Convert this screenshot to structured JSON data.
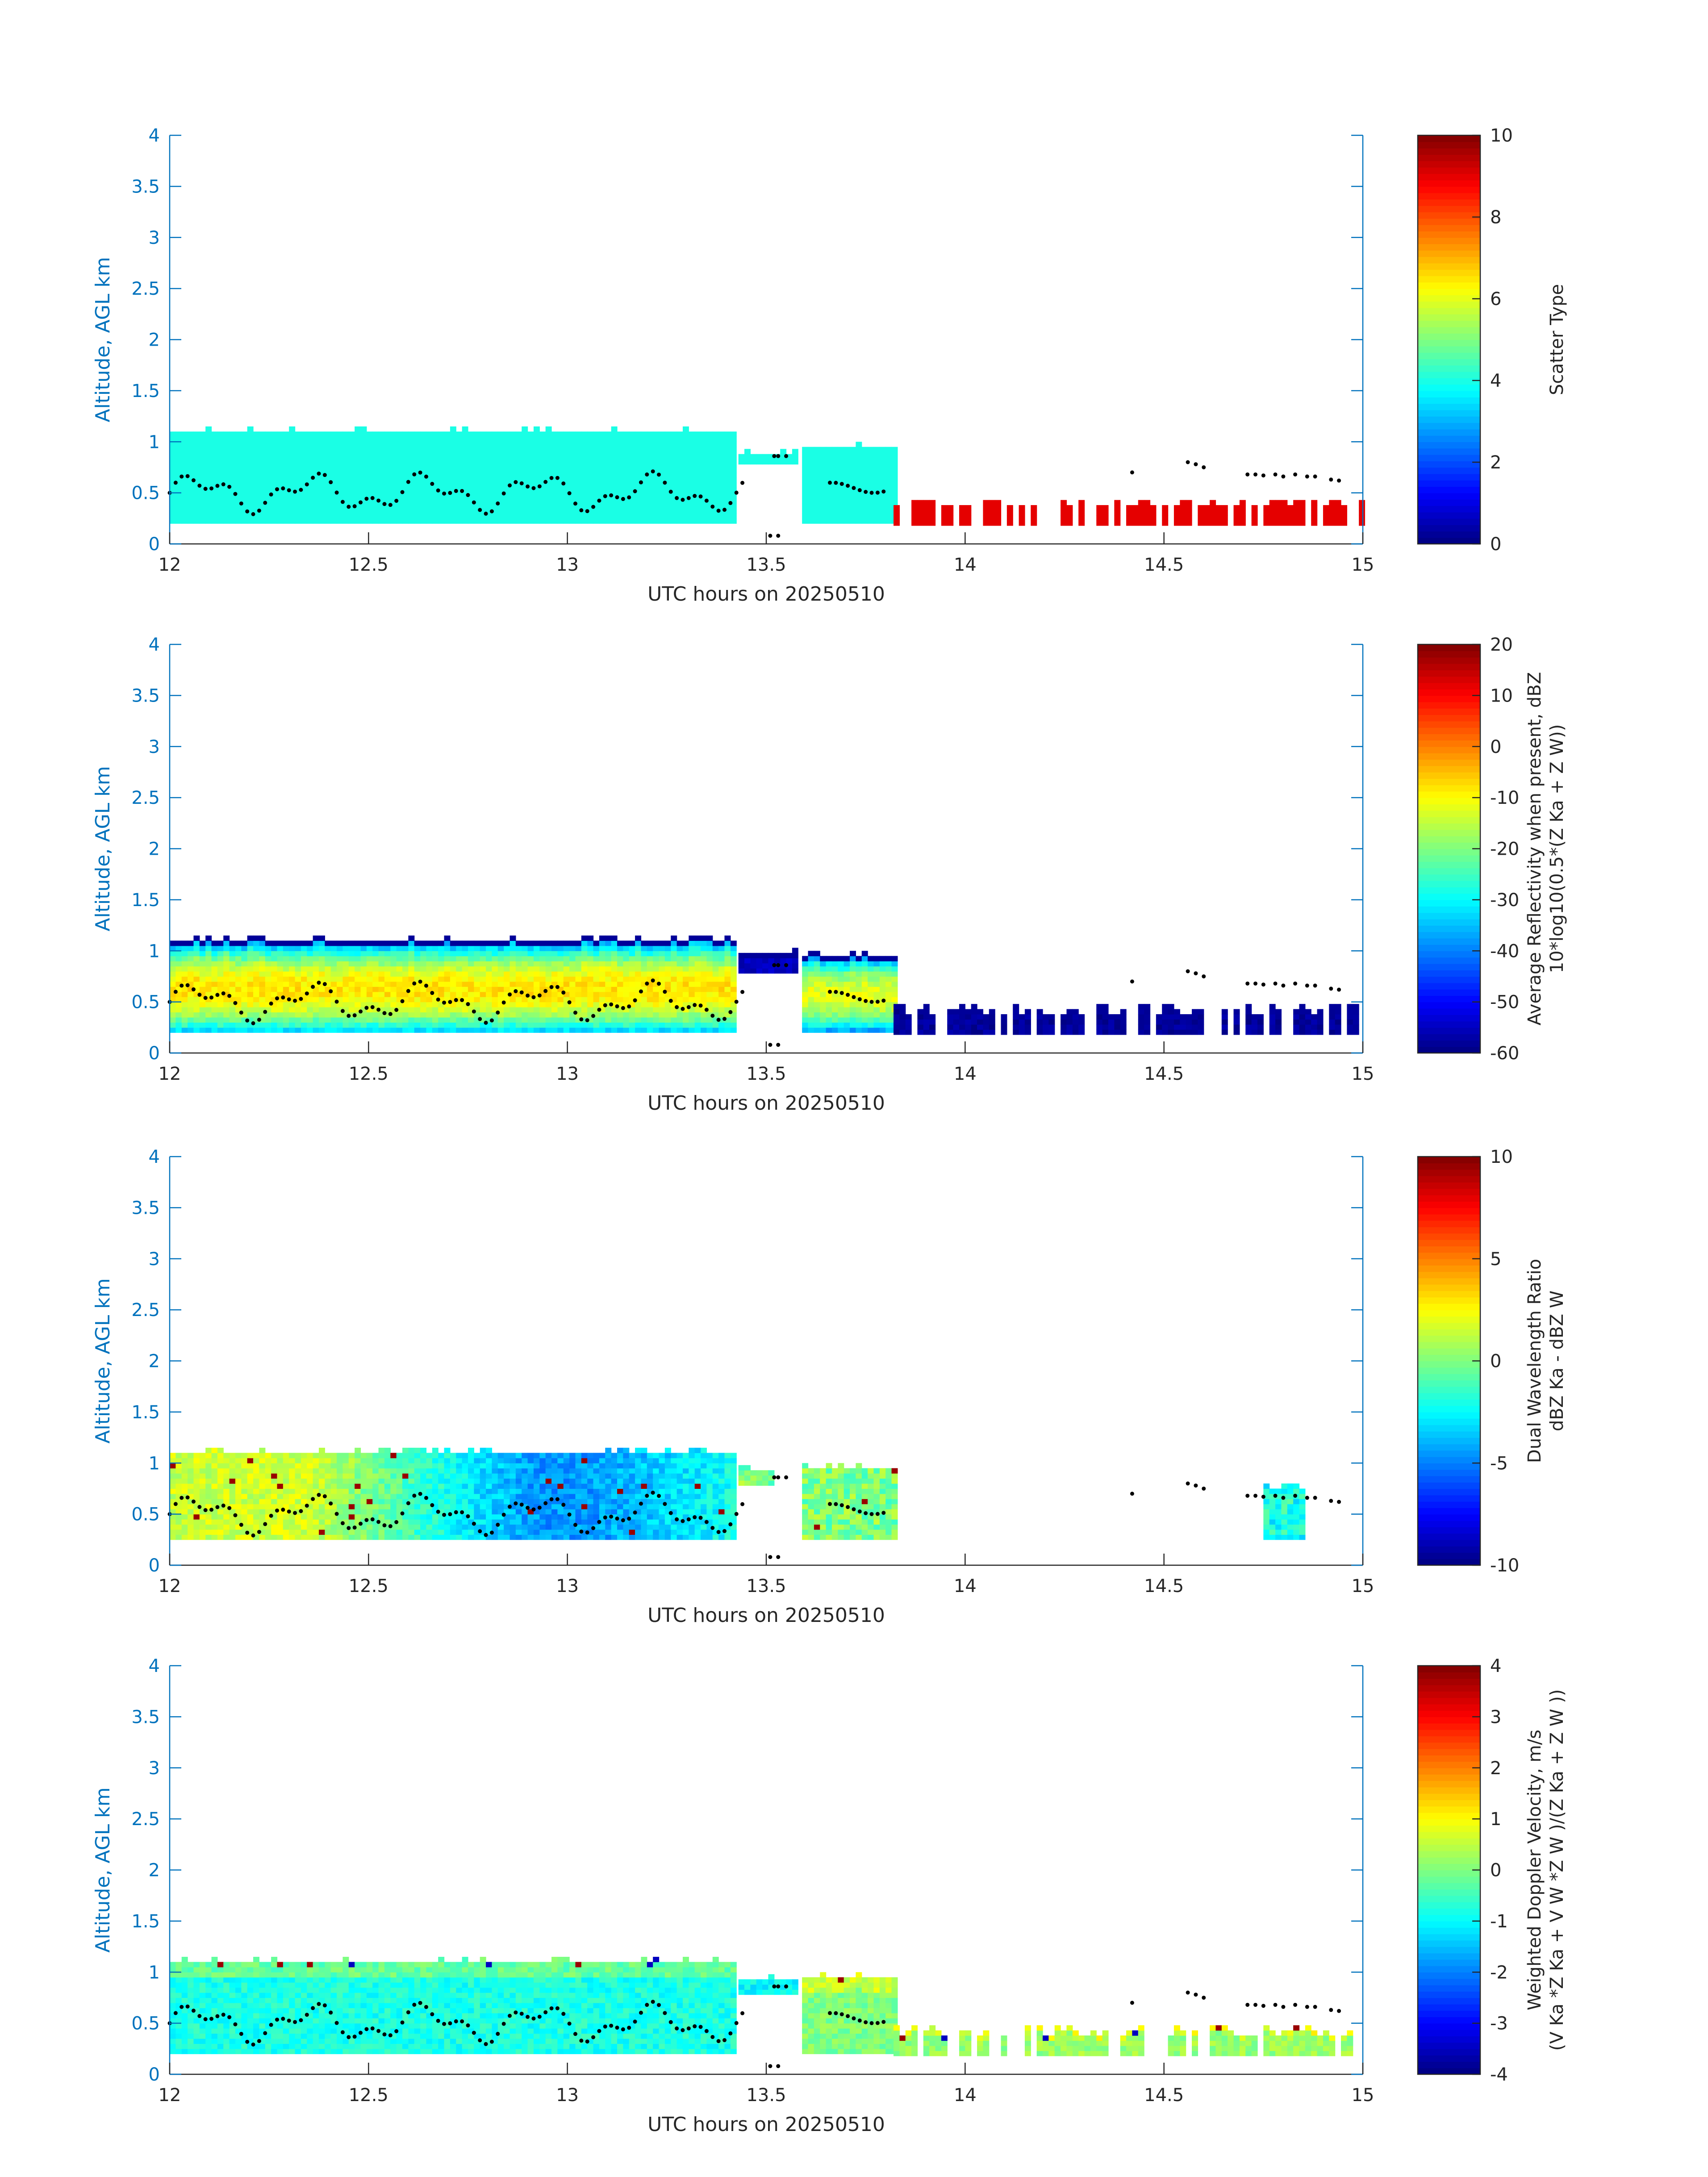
{
  "chart_data": [
    {
      "type": "heatmap",
      "xlabel": "UTC hours on 20250510",
      "ylabel": "Altitude, AGL km",
      "xlim": [
        12,
        15
      ],
      "ylim": [
        0,
        4
      ],
      "xticks": [
        "12",
        "12.5",
        "13",
        "13.5",
        "14",
        "14.5",
        "15"
      ],
      "yticks": [
        "0",
        "0.5",
        "1",
        "1.5",
        "2",
        "2.5",
        "3",
        "3.5",
        "4"
      ],
      "colorbar": {
        "label_lines": [
          "Scatter Type"
        ],
        "range": [
          0,
          10
        ],
        "ticks": [
          "0",
          "2",
          "4",
          "6",
          "8",
          "10"
        ]
      },
      "pattern": "scatter",
      "cloud_segments": [
        {
          "x": [
            12.0,
            13.42
          ],
          "bottom": 0.2,
          "top": 1.08,
          "value": 4.0
        },
        {
          "x": [
            13.43,
            13.57
          ],
          "bottom": 0.78,
          "top": 0.88,
          "value": 4.0
        },
        {
          "x": [
            13.59,
            13.82
          ],
          "bottom": 0.2,
          "top": 0.95,
          "value": 4.0
        },
        {
          "x": [
            13.82,
            15.0
          ],
          "bottom": 0.18,
          "top": 0.38,
          "value": 9.0,
          "sparse": true
        }
      ]
    },
    {
      "type": "heatmap",
      "xlabel": "UTC hours on 20250510",
      "ylabel": "Altitude, AGL km",
      "xlim": [
        12,
        15
      ],
      "ylim": [
        0,
        4
      ],
      "xticks": [
        "12",
        "12.5",
        "13",
        "13.5",
        "14",
        "14.5",
        "15"
      ],
      "yticks": [
        "0",
        "0.5",
        "1",
        "1.5",
        "2",
        "2.5",
        "3",
        "3.5",
        "4"
      ],
      "colorbar": {
        "label_lines": [
          "Average Reflectivity when present, dBZ",
          "10*log10(0.5*(Z Ka + Z W))"
        ],
        "range": [
          -60,
          20
        ],
        "ticks": [
          "-60",
          "-50",
          "-40",
          "-30",
          "-20",
          "-10",
          "0",
          "10",
          "20"
        ]
      },
      "pattern": "reflectivity",
      "cloud_segments": [
        {
          "x": [
            12.0,
            13.42
          ],
          "bottom": 0.2,
          "top": 1.08,
          "value": -8
        },
        {
          "x": [
            13.43,
            13.57
          ],
          "bottom": 0.78,
          "top": 0.95,
          "value": -55
        },
        {
          "x": [
            13.59,
            13.82
          ],
          "bottom": 0.2,
          "top": 0.95,
          "value": -12
        },
        {
          "x": [
            13.82,
            15.0
          ],
          "bottom": 0.18,
          "top": 0.4,
          "value": -58,
          "sparse": true
        }
      ]
    },
    {
      "type": "heatmap",
      "xlabel": "UTC hours on 20250510",
      "ylabel": "Altitude, AGL km",
      "xlim": [
        12,
        15
      ],
      "ylim": [
        0,
        4
      ],
      "xticks": [
        "12",
        "12.5",
        "13",
        "13.5",
        "14",
        "14.5",
        "15"
      ],
      "yticks": [
        "0",
        "0.5",
        "1",
        "1.5",
        "2",
        "2.5",
        "3",
        "3.5",
        "4"
      ],
      "colorbar": {
        "label_lines": [
          "Dual Wavelength Ratio",
          "dBZ Ka - dBZ W"
        ],
        "range": [
          -10,
          10
        ],
        "ticks": [
          "-10",
          "-5",
          "0",
          "5",
          "10"
        ]
      },
      "pattern": "dwr",
      "cloud_segments": [
        {
          "x": [
            12.0,
            13.42
          ],
          "bottom": 0.25,
          "top": 1.08,
          "value": -3
        },
        {
          "x": [
            13.43,
            13.52
          ],
          "bottom": 0.78,
          "top": 0.92,
          "value": 0
        },
        {
          "x": [
            13.59,
            13.82
          ],
          "bottom": 0.25,
          "top": 0.95,
          "value": 0
        },
        {
          "x": [
            14.75,
            14.85
          ],
          "bottom": 0.25,
          "top": 0.75,
          "value": -2
        }
      ]
    },
    {
      "type": "heatmap",
      "xlabel": "UTC hours on 20250510",
      "ylabel": "Altitude, AGL km",
      "xlim": [
        12,
        15
      ],
      "ylim": [
        0,
        4
      ],
      "xticks": [
        "12",
        "12.5",
        "13",
        "13.5",
        "14",
        "14.5",
        "15"
      ],
      "yticks": [
        "0",
        "0.5",
        "1",
        "1.5",
        "2",
        "2.5",
        "3",
        "3.5",
        "4"
      ],
      "colorbar": {
        "label_lines": [
          "Weighted Doppler Velocity, m/s",
          "(V Ka *Z Ka + V W *Z W )/(Z Ka + Z W ))"
        ],
        "range": [
          -4,
          4
        ],
        "ticks": [
          "-4",
          "-3",
          "-2",
          "-1",
          "0",
          "1",
          "2",
          "3",
          "4"
        ]
      },
      "pattern": "doppler",
      "cloud_segments": [
        {
          "x": [
            12.0,
            13.42
          ],
          "bottom": 0.2,
          "top": 1.08,
          "value": -0.8
        },
        {
          "x": [
            13.43,
            13.57
          ],
          "bottom": 0.78,
          "top": 0.92,
          "value": -1
        },
        {
          "x": [
            13.59,
            13.82
          ],
          "bottom": 0.2,
          "top": 0.95,
          "value": 0
        },
        {
          "x": [
            13.82,
            15.0
          ],
          "bottom": 0.18,
          "top": 0.4,
          "value": 0.2,
          "sparse": true
        }
      ]
    }
  ]
}
